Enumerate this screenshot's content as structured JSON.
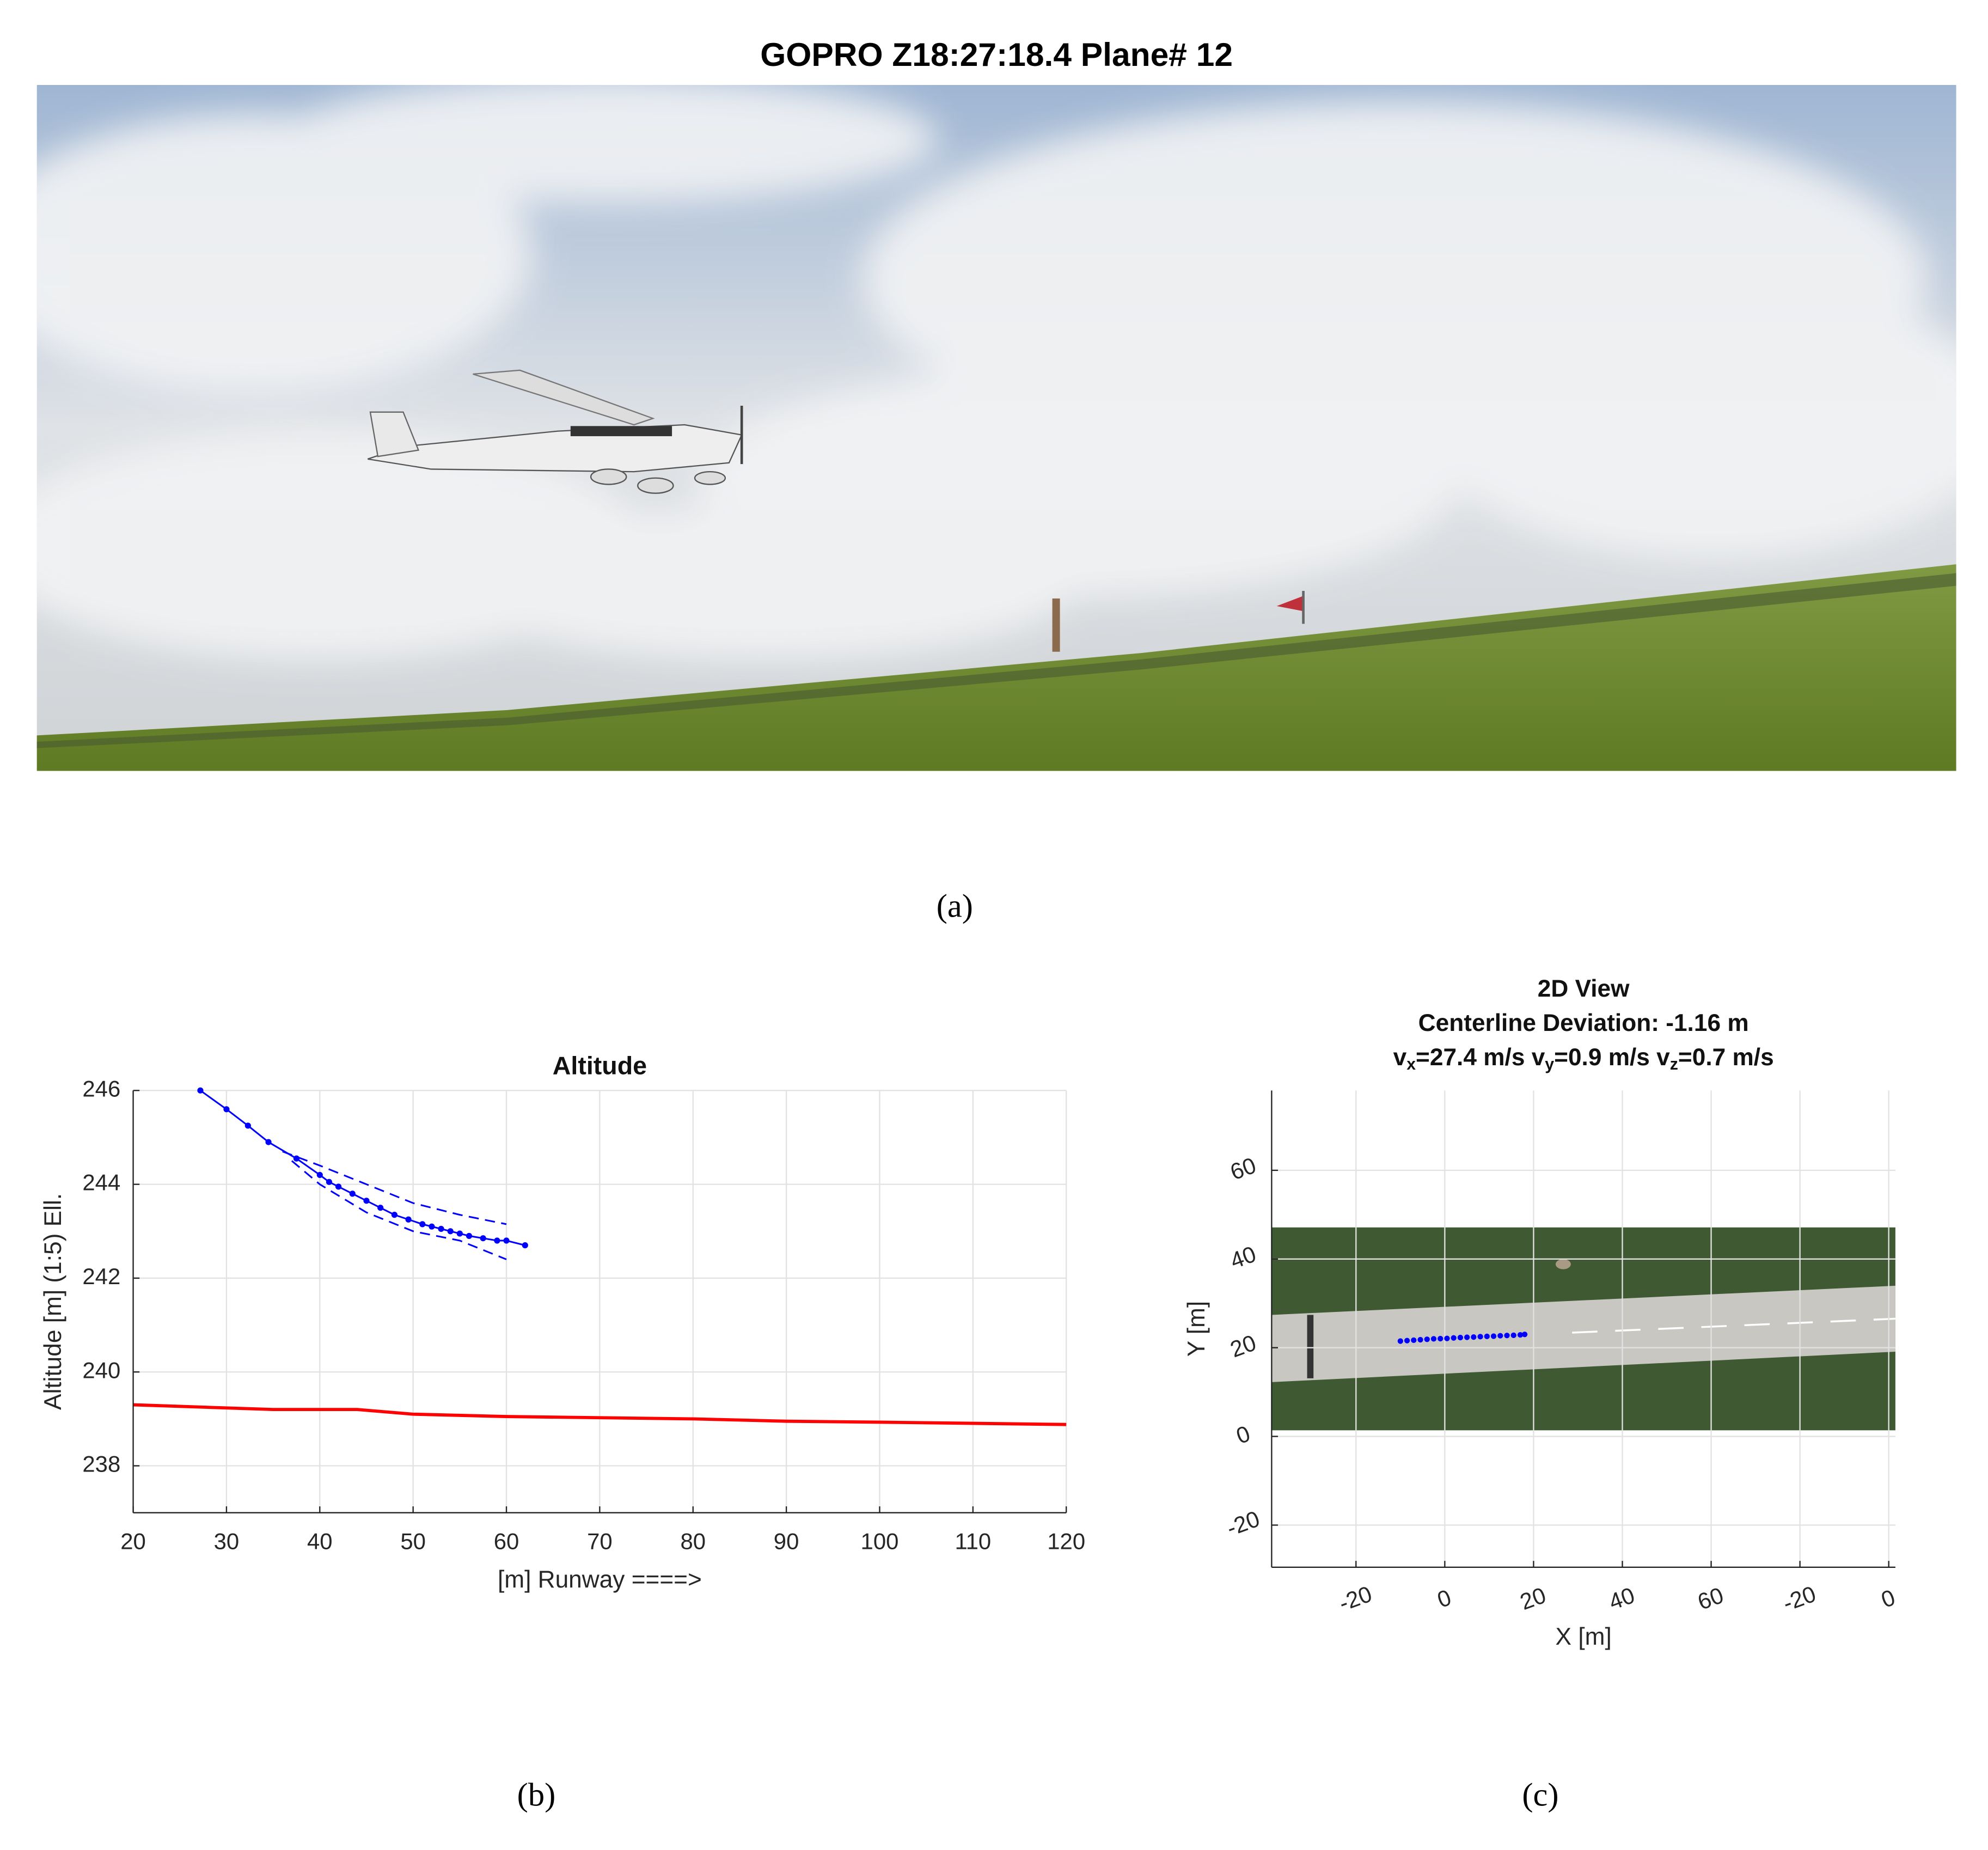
{
  "photo_title": "GOPRO Z18:27:18.4 Plane# 12",
  "captions": [
    "(a)",
    "(b)",
    "(c)"
  ],
  "chart_data": [
    {
      "type": "line",
      "title": "Altitude",
      "xlabel": "[m] Runway ====>",
      "ylabel": "Altitude [m] (1:5) Ell.",
      "xlim": [
        20,
        120
      ],
      "xticks": [
        20,
        30,
        40,
        50,
        60,
        70,
        80,
        90,
        100,
        110,
        120
      ],
      "ylim": [
        237,
        246
      ],
      "yticks": [
        238,
        240,
        242,
        244,
        246
      ],
      "grid": true,
      "series": [
        {
          "color": "#0000ff",
          "markers": true,
          "x": [
            27.2,
            30,
            32.3,
            34.5,
            37.5,
            40,
            41,
            42,
            43.5,
            45,
            46.5,
            48,
            49.5,
            51,
            52,
            53,
            54,
            55,
            56,
            57.5,
            59,
            60,
            62
          ],
          "values": [
            246,
            245.6,
            245.25,
            244.9,
            244.55,
            244.2,
            244.05,
            243.95,
            243.8,
            243.65,
            243.5,
            243.35,
            243.25,
            243.15,
            243.1,
            243.05,
            243.0,
            242.95,
            242.9,
            242.85,
            242.8,
            242.8,
            242.7
          ]
        },
        {
          "color": "#0000ff",
          "dash": true,
          "x": [
            36,
            40,
            45,
            50,
            55,
            60
          ],
          "values": [
            244.7,
            244.4,
            244.0,
            243.6,
            243.35,
            243.15
          ]
        },
        {
          "color": "#0000ff",
          "dash": true,
          "x": [
            37,
            40,
            45,
            50,
            55,
            60
          ],
          "values": [
            244.5,
            244.0,
            243.4,
            243.0,
            242.8,
            242.4
          ]
        },
        {
          "color": "#ff0000",
          "width": 2.5,
          "x": [
            20,
            35,
            44,
            50,
            60,
            80,
            90,
            100,
            120
          ],
          "values": [
            239.3,
            239.2,
            239.2,
            239.1,
            239.05,
            239.0,
            238.95,
            238.93,
            238.88
          ]
        }
      ]
    },
    {
      "type": "scatter",
      "title": [
        "2D View",
        "Centerline Deviation: -1.16 m"
      ],
      "title_parts": [
        "v",
        "x",
        "=27.4 m/s v",
        "y",
        "=0.9 m/s v",
        "z",
        "=0.7 m/s"
      ],
      "xlabel": "X [m]",
      "ylabel": "Y [m]",
      "xlim": [
        -39,
        101.5
      ],
      "xticks": [
        -20,
        0,
        20,
        40,
        60,
        {
          "value": 80,
          "label": "-20"
        },
        {
          "value": 100,
          "label": "0"
        }
      ],
      "ylim": [
        -29.5,
        78
      ],
      "yticks": [
        -20,
        0,
        20,
        40,
        60
      ],
      "grid": true,
      "series": [
        {
          "color": "#0000ff",
          "x": [
            -10,
            -8.5,
            -7,
            -5.5,
            -4,
            -2.5,
            -1,
            0.5,
            2,
            3.5,
            5,
            6.5,
            8,
            9.5,
            11,
            12.5,
            14,
            15.5,
            17,
            18
          ],
          "values": [
            21.5,
            21.6,
            21.7,
            21.8,
            21.9,
            22.0,
            22.05,
            22.1,
            22.2,
            22.3,
            22.35,
            22.4,
            22.5,
            22.55,
            22.6,
            22.7,
            22.75,
            22.8,
            22.9,
            23.0
          ]
        }
      ]
    }
  ]
}
